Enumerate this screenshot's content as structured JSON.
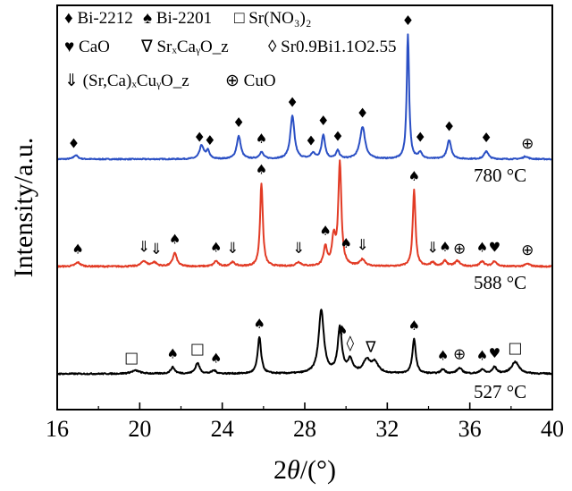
{
  "chart_data": {
    "type": "line",
    "title": "",
    "xlabel_parts": [
      "2",
      "θ",
      "/(°)"
    ],
    "ylabel": "Intensity/a.u.",
    "xlim": [
      16,
      40
    ],
    "x_ticks": [
      16,
      20,
      24,
      28,
      32,
      36,
      40
    ],
    "y_ticks": [],
    "grid": false,
    "legend": [
      {
        "symbol": "♦",
        "text": "Bi-2212"
      },
      {
        "symbol": "♠",
        "text": "Bi-2201"
      },
      {
        "symbol": "□",
        "text": "Sr(NO₃)₂"
      },
      {
        "symbol": "♥",
        "text": "CaO"
      },
      {
        "symbol": "∇",
        "text": "SrₓCaᵧO_z"
      },
      {
        "symbol": "◊",
        "text": "Sr0.9Bi1.1O2.55"
      },
      {
        "symbol": "⇓",
        "text": "(Sr,Ca)ₓCuᵧO_z"
      },
      {
        "symbol": "⊕",
        "text": "CuO"
      }
    ],
    "legend_placement": "top-left",
    "series": [
      {
        "name": "780 °C",
        "color": "#2a4fc4",
        "baseline": 0.06,
        "noise": 0.004,
        "peaks": [
          {
            "x": 16.9,
            "h": 0.03,
            "w": 0.12
          },
          {
            "x": 23.0,
            "h": 0.1,
            "w": 0.12
          },
          {
            "x": 23.3,
            "h": 0.06,
            "w": 0.1
          },
          {
            "x": 24.8,
            "h": 0.17,
            "w": 0.12
          },
          {
            "x": 25.9,
            "h": 0.05,
            "w": 0.12
          },
          {
            "x": 27.4,
            "h": 0.32,
            "w": 0.12
          },
          {
            "x": 28.4,
            "h": 0.04,
            "w": 0.12
          },
          {
            "x": 28.9,
            "h": 0.18,
            "w": 0.1
          },
          {
            "x": 29.6,
            "h": 0.06,
            "w": 0.1
          },
          {
            "x": 30.8,
            "h": 0.24,
            "w": 0.15
          },
          {
            "x": 33.0,
            "h": 0.93,
            "w": 0.07
          },
          {
            "x": 33.6,
            "h": 0.05,
            "w": 0.1
          },
          {
            "x": 35.0,
            "h": 0.14,
            "w": 0.12
          },
          {
            "x": 36.8,
            "h": 0.06,
            "w": 0.12
          },
          {
            "x": 38.7,
            "h": 0.02,
            "w": 0.15
          }
        ],
        "markers": [
          {
            "x": 16.8,
            "symbol": "♦"
          },
          {
            "x": 22.9,
            "symbol": "♦"
          },
          {
            "x": 23.4,
            "symbol": "♦"
          },
          {
            "x": 24.8,
            "symbol": "♦"
          },
          {
            "x": 25.9,
            "symbol": "♠"
          },
          {
            "x": 27.4,
            "symbol": "♦"
          },
          {
            "x": 28.3,
            "symbol": "♦"
          },
          {
            "x": 28.9,
            "symbol": "♦"
          },
          {
            "x": 29.6,
            "symbol": "♦"
          },
          {
            "x": 30.8,
            "symbol": "♦"
          },
          {
            "x": 33.0,
            "symbol": "♦"
          },
          {
            "x": 33.6,
            "symbol": "♦"
          },
          {
            "x": 35.0,
            "symbol": "♦"
          },
          {
            "x": 36.8,
            "symbol": "♦"
          },
          {
            "x": 38.8,
            "symbol": "⊕"
          }
        ]
      },
      {
        "name": "588 °C",
        "color": "#e23b25",
        "baseline": 0.06,
        "noise": 0.005,
        "peaks": [
          {
            "x": 17.0,
            "h": 0.03,
            "w": 0.15
          },
          {
            "x": 20.2,
            "h": 0.04,
            "w": 0.15
          },
          {
            "x": 20.7,
            "h": 0.03,
            "w": 0.15
          },
          {
            "x": 21.7,
            "h": 0.1,
            "w": 0.12
          },
          {
            "x": 23.7,
            "h": 0.04,
            "w": 0.12
          },
          {
            "x": 24.5,
            "h": 0.03,
            "w": 0.15
          },
          {
            "x": 25.9,
            "h": 0.62,
            "w": 0.08
          },
          {
            "x": 27.7,
            "h": 0.03,
            "w": 0.15
          },
          {
            "x": 29.0,
            "h": 0.14,
            "w": 0.1
          },
          {
            "x": 29.4,
            "h": 0.2,
            "w": 0.1
          },
          {
            "x": 29.7,
            "h": 0.77,
            "w": 0.09
          },
          {
            "x": 30.8,
            "h": 0.05,
            "w": 0.15
          },
          {
            "x": 33.3,
            "h": 0.57,
            "w": 0.08
          },
          {
            "x": 34.2,
            "h": 0.03,
            "w": 0.12
          },
          {
            "x": 34.8,
            "h": 0.04,
            "w": 0.12
          },
          {
            "x": 35.4,
            "h": 0.04,
            "w": 0.15
          },
          {
            "x": 36.6,
            "h": 0.04,
            "w": 0.12
          },
          {
            "x": 37.2,
            "h": 0.04,
            "w": 0.12
          },
          {
            "x": 38.8,
            "h": 0.02,
            "w": 0.15
          }
        ],
        "markers": [
          {
            "x": 17.0,
            "symbol": "♠"
          },
          {
            "x": 20.2,
            "symbol": "⇓"
          },
          {
            "x": 20.8,
            "symbol": "⇓"
          },
          {
            "x": 21.7,
            "symbol": "♠"
          },
          {
            "x": 23.7,
            "symbol": "♠"
          },
          {
            "x": 24.5,
            "symbol": "⇓"
          },
          {
            "x": 25.9,
            "symbol": "♠"
          },
          {
            "x": 27.7,
            "symbol": "⇓"
          },
          {
            "x": 29.0,
            "symbol": "♠"
          },
          {
            "x": 30.0,
            "symbol": "♠"
          },
          {
            "x": 30.8,
            "symbol": "⇓"
          },
          {
            "x": 33.3,
            "symbol": "♠"
          },
          {
            "x": 34.2,
            "symbol": "⇓"
          },
          {
            "x": 34.8,
            "symbol": "♠"
          },
          {
            "x": 35.5,
            "symbol": "⊕"
          },
          {
            "x": 36.6,
            "symbol": "♠"
          },
          {
            "x": 37.2,
            "symbol": "♥"
          },
          {
            "x": 38.8,
            "symbol": "⊕"
          }
        ]
      },
      {
        "name": "527 °C",
        "color": "#000000",
        "baseline": 0.06,
        "noise": 0.006,
        "peaks": [
          {
            "x": 19.8,
            "h": 0.03,
            "w": 0.25
          },
          {
            "x": 21.6,
            "h": 0.06,
            "w": 0.12
          },
          {
            "x": 22.8,
            "h": 0.1,
            "w": 0.12
          },
          {
            "x": 23.6,
            "h": 0.03,
            "w": 0.12
          },
          {
            "x": 25.8,
            "h": 0.34,
            "w": 0.1
          },
          {
            "x": 28.8,
            "h": 0.59,
            "w": 0.15
          },
          {
            "x": 29.7,
            "h": 0.42,
            "w": 0.12
          },
          {
            "x": 30.2,
            "h": 0.12,
            "w": 0.15
          },
          {
            "x": 31.0,
            "h": 0.12,
            "w": 0.2
          },
          {
            "x": 31.4,
            "h": 0.1,
            "w": 0.2
          },
          {
            "x": 33.3,
            "h": 0.32,
            "w": 0.1
          },
          {
            "x": 34.7,
            "h": 0.04,
            "w": 0.12
          },
          {
            "x": 35.5,
            "h": 0.05,
            "w": 0.15
          },
          {
            "x": 36.6,
            "h": 0.04,
            "w": 0.12
          },
          {
            "x": 37.2,
            "h": 0.06,
            "w": 0.12
          },
          {
            "x": 38.2,
            "h": 0.11,
            "w": 0.22
          }
        ],
        "markers": [
          {
            "x": 19.6,
            "symbol": "□"
          },
          {
            "x": 21.6,
            "symbol": "♠"
          },
          {
            "x": 22.8,
            "symbol": "□"
          },
          {
            "x": 23.7,
            "symbol": "♠"
          },
          {
            "x": 25.8,
            "symbol": "♠"
          },
          {
            "x": 29.8,
            "symbol": "♠"
          },
          {
            "x": 30.2,
            "symbol": "◊"
          },
          {
            "x": 31.2,
            "symbol": "∇"
          },
          {
            "x": 33.3,
            "symbol": "♠"
          },
          {
            "x": 34.7,
            "symbol": "♠"
          },
          {
            "x": 35.5,
            "symbol": "⊕"
          },
          {
            "x": 36.6,
            "symbol": "♠"
          },
          {
            "x": 37.2,
            "symbol": "♥"
          },
          {
            "x": 38.2,
            "symbol": "□"
          }
        ]
      }
    ]
  }
}
